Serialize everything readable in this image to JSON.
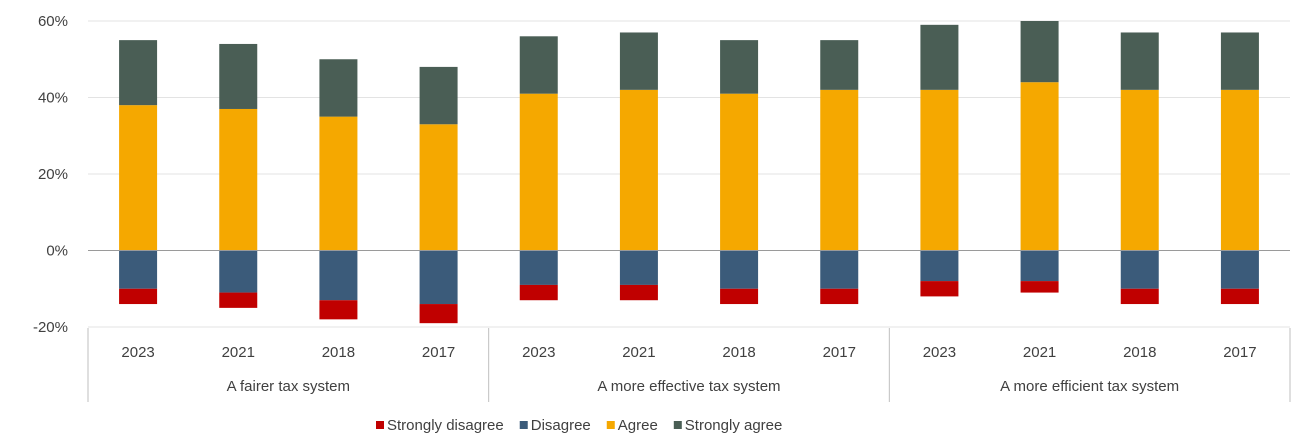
{
  "chart_data": {
    "type": "bar",
    "stacked": true,
    "groups": [
      {
        "label": "A fairer tax system",
        "categories": [
          "2023",
          "2021",
          "2018",
          "2017"
        ]
      },
      {
        "label": "A more effective tax system",
        "categories": [
          "2023",
          "2021",
          "2018",
          "2017"
        ]
      },
      {
        "label": "A more efficient tax system",
        "categories": [
          "2023",
          "2021",
          "2018",
          "2017"
        ]
      }
    ],
    "series": [
      {
        "name": "Strongly disagree",
        "color": "#c00000",
        "values": [
          -4,
          -4,
          -5,
          -5,
          -4,
          -4,
          -4,
          -4,
          -4,
          -3,
          -4,
          -4
        ]
      },
      {
        "name": "Disagree",
        "color": "#3b5b7a",
        "values": [
          -10,
          -11,
          -13,
          -14,
          -9,
          -9,
          -10,
          -10,
          -8,
          -8,
          -10,
          -10
        ]
      },
      {
        "name": "Agree",
        "color": "#f5a800",
        "values": [
          38,
          37,
          35,
          33,
          41,
          42,
          41,
          42,
          42,
          44,
          42,
          42
        ]
      },
      {
        "name": "Strongly agree",
        "color": "#4a5e55",
        "values": [
          17,
          17,
          15,
          15,
          15,
          15,
          14,
          13,
          17,
          16,
          15,
          15
        ]
      }
    ],
    "y_ticks": [
      "60%",
      "40%",
      "20%",
      "0%",
      "-20%"
    ],
    "ylim": [
      -20,
      60
    ],
    "xlabel": "",
    "ylabel": "",
    "grid": true,
    "legend_position": "bottom"
  }
}
